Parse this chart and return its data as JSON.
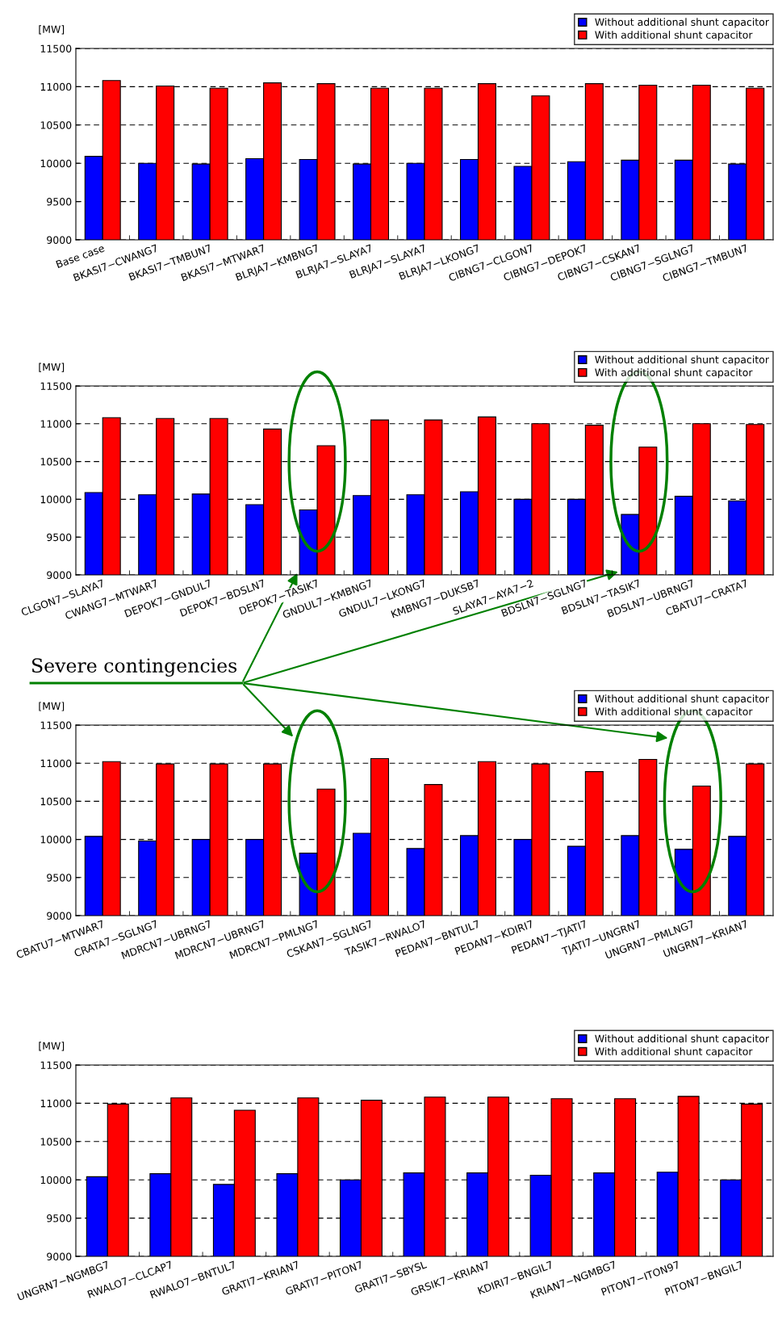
{
  "chart_data": [
    {
      "type": "bar",
      "ylabel": "[MW]",
      "ylim": [
        9000,
        11500
      ],
      "yticks": [
        9000,
        9500,
        10000,
        10500,
        11000,
        11500
      ],
      "grid": "y",
      "legend": "top right",
      "categories": [
        "Base case",
        "BKASI7−CWANG7",
        "BKASI7−TMBUN7",
        "BKASI7−MTWAR7",
        "BLRJA7−KMBNG7",
        "BLRJA7−SLAYA7",
        "BLRJA7−SLAYA7",
        "BLRJA7−LKONG7",
        "CIBNG7−CLGON7",
        "CIBNG7−DEPOK7",
        "CIBNG7−CSKAN7",
        "CIBNG7−SGLNG7",
        "CIBNG7−TMBUN7"
      ],
      "series": [
        {
          "name": "Without additional shunt capacitor",
          "color": "#0000ff",
          "values": [
            10090,
            10000,
            9990,
            10060,
            10050,
            9990,
            10000,
            10050,
            9960,
            10020,
            10040,
            10040,
            9990
          ]
        },
        {
          "name": "With additional shunt capacitor",
          "color": "#ff0000",
          "values": [
            11080,
            11010,
            10980,
            11050,
            11040,
            10980,
            10980,
            11040,
            10880,
            11040,
            11020,
            11020,
            10980
          ]
        }
      ]
    },
    {
      "type": "bar",
      "ylabel": "[MW]",
      "ylim": [
        9000,
        11500
      ],
      "yticks": [
        9000,
        9500,
        10000,
        10500,
        11000,
        11500
      ],
      "grid": "y",
      "legend": "top right",
      "annotations": [
        "Severe contingencies"
      ],
      "categories": [
        "CLGON7−SLAYA7",
        "CWANG7−MTWAR7",
        "DEPOK7−GNDUL7",
        "DEPOK7−BDSLN7",
        "DEPOK7−TASIK7",
        "GNDUL7−KMBNG7",
        "GNDUL7−LKONG7",
        "KMBNG7−DUKSB7",
        "SLAYA7−AYA7−2",
        "BDSLN7−SGLNG7",
        "BDSLN7−TASIK7",
        "BDSLN7−UBRNG7",
        "CBATU7−CRATA7"
      ],
      "series": [
        {
          "name": "Without additional shunt capacitor",
          "color": "#0000ff",
          "values": [
            10090,
            10060,
            10070,
            9930,
            9860,
            10050,
            10060,
            10100,
            10000,
            10000,
            9800,
            10040,
            9980
          ]
        },
        {
          "name": "With additional shunt capacitor",
          "color": "#ff0000",
          "values": [
            11080,
            11070,
            11070,
            10930,
            10710,
            11050,
            11050,
            11090,
            11000,
            10980,
            10690,
            11000,
            10990
          ]
        }
      ]
    },
    {
      "type": "bar",
      "ylabel": "[MW]",
      "ylim": [
        9000,
        11500
      ],
      "yticks": [
        9000,
        9500,
        10000,
        10500,
        11000,
        11500
      ],
      "grid": "y",
      "legend": "top right",
      "categories": [
        "CBATU7−MTWAR7",
        "CRATA7−SGLNG7",
        "MDRCN7−UBRNG7",
        "MDRCN7−UBRNG7",
        "MDRCN7−PMLNG7",
        "CSKAN7−SGLNG7",
        "TASIK7−RWALO7",
        "PEDAN7−BNTUL7",
        "PEDAN7−KDIRI7",
        "PEDAN7−TJATI7",
        "TJATI7−UNGRN7",
        "UNGRN7−PMLNG7",
        "UNGRN7−KRIAN7"
      ],
      "series": [
        {
          "name": "Without additional shunt capacitor",
          "color": "#0000ff",
          "values": [
            10040,
            9980,
            10000,
            10000,
            9820,
            10080,
            9880,
            10050,
            10000,
            9910,
            10050,
            9870,
            10040
          ]
        },
        {
          "name": "With additional shunt capacitor",
          "color": "#ff0000",
          "values": [
            11020,
            10990,
            10990,
            10990,
            10660,
            11060,
            10720,
            11020,
            10990,
            10890,
            11050,
            10700,
            10990
          ]
        }
      ]
    },
    {
      "type": "bar",
      "ylabel": "[MW]",
      "ylim": [
        9000,
        11500
      ],
      "yticks": [
        9000,
        9500,
        10000,
        10500,
        11000,
        11500
      ],
      "grid": "y",
      "legend": "top right",
      "categories": [
        "UNGRN7−NGMBG7",
        "RWALO7−CLCAP7",
        "RWALO7−BNTUL7",
        "GRATI7−KRIAN7",
        "GRATI7−PITON7",
        "GRATI7−SBYSL",
        "GRSIK7−KRIAN7",
        "KDIRI7−BNGIL7",
        "KRIAN7−NGMBG7",
        "PITON7−ITON97",
        "PITON7−BNGIL7"
      ],
      "series": [
        {
          "name": "Without additional shunt capacitor",
          "color": "#0000ff",
          "values": [
            10040,
            10080,
            9940,
            10080,
            10000,
            10090,
            10090,
            10060,
            10090,
            10100,
            10000
          ]
        },
        {
          "name": "With additional shunt capacitor",
          "color": "#ff0000",
          "values": [
            10990,
            11070,
            10910,
            11070,
            11040,
            11080,
            11080,
            11060,
            11060,
            11090,
            10990
          ]
        }
      ]
    }
  ]
}
